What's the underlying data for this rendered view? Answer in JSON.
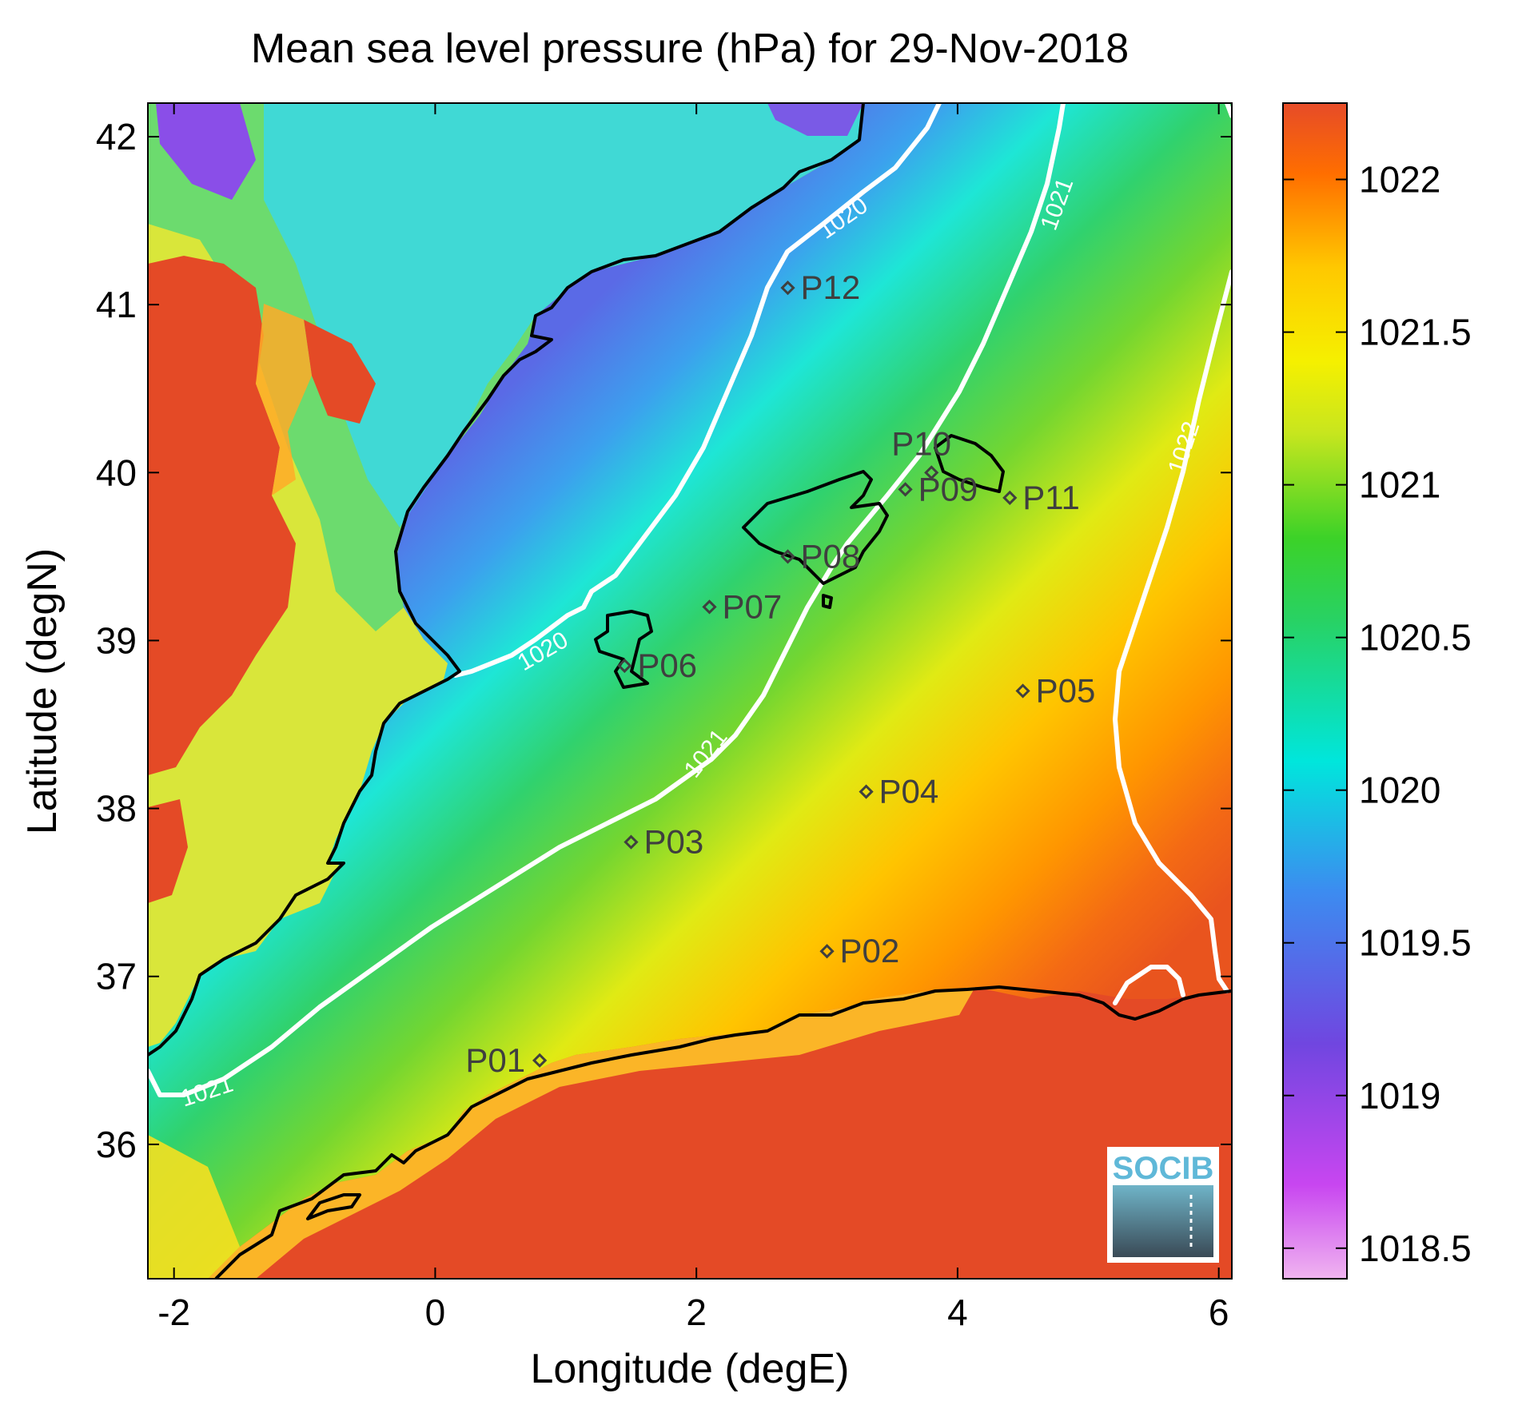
{
  "title": "Mean sea level pressure (hPa) for 29-Nov-2018",
  "xlabel": "Longitude (degE)",
  "ylabel": "Latitude (degN)",
  "xticks": [
    "-2",
    "0",
    "2",
    "4",
    "6"
  ],
  "yticks": [
    "42",
    "41",
    "40",
    "39",
    "38",
    "37",
    "36"
  ],
  "colorbar": {
    "ticks": [
      "1022",
      "1021.5",
      "1021",
      "1020.5",
      "1020",
      "1019.5",
      "1019",
      "1018.5"
    ],
    "colors": [
      "#f0b4f0",
      "#b43cf0",
      "#6450e6",
      "#3c8cf0",
      "#00e6dc",
      "#28d264",
      "#3cd228",
      "#c8e61e",
      "#f5f000",
      "#ffc800",
      "#ff8c00",
      "#f05a1e",
      "#e64b28"
    ]
  },
  "contour_labels": [
    "1020",
    "1021",
    "1022"
  ],
  "chart_data": {
    "type": "heatmap",
    "title": "Mean sea level pressure (hPa) for 29-Nov-2018",
    "xlabel": "Longitude (degE)",
    "ylabel": "Latitude (degN)",
    "xlim": [
      -2.2,
      6.1
    ],
    "ylim": [
      35.2,
      42.2
    ],
    "clim": [
      1018.4,
      1022.25
    ],
    "contour_levels": [
      1020,
      1021,
      1022
    ],
    "points": [
      {
        "name": "P01",
        "lon": 0.8,
        "lat": 36.5
      },
      {
        "name": "P02",
        "lon": 3.0,
        "lat": 37.15
      },
      {
        "name": "P03",
        "lon": 1.5,
        "lat": 37.8
      },
      {
        "name": "P04",
        "lon": 3.3,
        "lat": 38.1
      },
      {
        "name": "P05",
        "lon": 4.5,
        "lat": 38.7
      },
      {
        "name": "P06",
        "lon": 1.45,
        "lat": 38.85
      },
      {
        "name": "P07",
        "lon": 2.1,
        "lat": 39.2
      },
      {
        "name": "P08",
        "lon": 2.7,
        "lat": 39.5
      },
      {
        "name": "P09",
        "lon": 3.6,
        "lat": 39.9
      },
      {
        "name": "P10",
        "lon": 3.8,
        "lat": 40.0
      },
      {
        "name": "P11",
        "lon": 4.4,
        "lat": 39.85
      },
      {
        "name": "P12",
        "lon": 2.7,
        "lat": 41.1
      }
    ]
  },
  "logo": "SOCIB"
}
